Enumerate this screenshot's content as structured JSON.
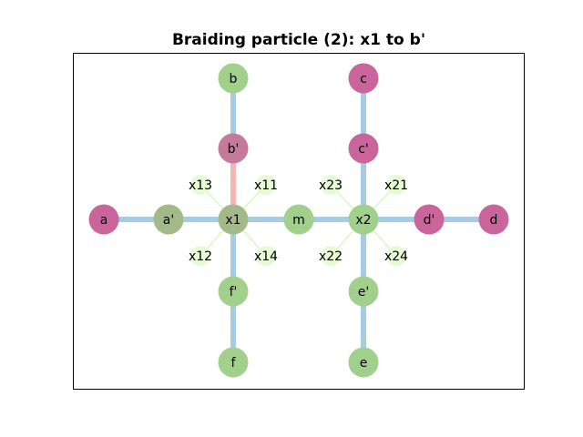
{
  "title": "Braiding particle (2): x1 to b'",
  "colors": {
    "green": "#a0d08c",
    "magenta": "#c9659b",
    "mixed": "#c47a98",
    "blend": "#a4b98a",
    "pale": "#e6fad6",
    "edge_blue": "#a7cbe3",
    "edge_pink": "#f3b8b6",
    "edge_pale": "#e4f7cc"
  },
  "nodes": [
    {
      "id": "a",
      "label": "a",
      "color": "magenta"
    },
    {
      "id": "a'",
      "label": "a'",
      "color": "blend"
    },
    {
      "id": "x1",
      "label": "x1",
      "color": "blend"
    },
    {
      "id": "m",
      "label": "m",
      "color": "green"
    },
    {
      "id": "x2",
      "label": "x2",
      "color": "green"
    },
    {
      "id": "d'",
      "label": "d'",
      "color": "magenta"
    },
    {
      "id": "d",
      "label": "d",
      "color": "magenta"
    },
    {
      "id": "b",
      "label": "b",
      "color": "green"
    },
    {
      "id": "b'",
      "label": "b'",
      "color": "mixed"
    },
    {
      "id": "f'",
      "label": "f'",
      "color": "green"
    },
    {
      "id": "f",
      "label": "f",
      "color": "green"
    },
    {
      "id": "c",
      "label": "c",
      "color": "magenta"
    },
    {
      "id": "c'",
      "label": "c'",
      "color": "magenta"
    },
    {
      "id": "e'",
      "label": "e'",
      "color": "green"
    },
    {
      "id": "e",
      "label": "e",
      "color": "green"
    }
  ],
  "small_nodes": [
    {
      "id": "x11",
      "label": "x11"
    },
    {
      "id": "x12",
      "label": "x12"
    },
    {
      "id": "x13",
      "label": "x13"
    },
    {
      "id": "x14",
      "label": "x14"
    },
    {
      "id": "x21",
      "label": "x21"
    },
    {
      "id": "x22",
      "label": "x22"
    },
    {
      "id": "x23",
      "label": "x23"
    },
    {
      "id": "x24",
      "label": "x24"
    }
  ],
  "edges": [
    {
      "from": "a",
      "to": "a'",
      "color": "edge_blue"
    },
    {
      "from": "a'",
      "to": "x1",
      "color": "edge_blue"
    },
    {
      "from": "x1",
      "to": "m",
      "color": "edge_blue"
    },
    {
      "from": "m",
      "to": "x2",
      "color": "edge_blue"
    },
    {
      "from": "x2",
      "to": "d'",
      "color": "edge_blue"
    },
    {
      "from": "d'",
      "to": "d",
      "color": "edge_blue"
    },
    {
      "from": "b",
      "to": "b'",
      "color": "edge_blue"
    },
    {
      "from": "b'",
      "to": "x1",
      "color": "edge_pink"
    },
    {
      "from": "x1",
      "to": "f'",
      "color": "edge_blue"
    },
    {
      "from": "f'",
      "to": "f",
      "color": "edge_blue"
    },
    {
      "from": "c",
      "to": "c'",
      "color": "edge_blue"
    },
    {
      "from": "c'",
      "to": "x2",
      "color": "edge_blue"
    },
    {
      "from": "x2",
      "to": "e'",
      "color": "edge_blue"
    },
    {
      "from": "e'",
      "to": "e",
      "color": "edge_blue"
    }
  ],
  "thin_edges": [
    {
      "from": "x1",
      "to": "x11"
    },
    {
      "from": "x1",
      "to": "x12"
    },
    {
      "from": "x1",
      "to": "x13"
    },
    {
      "from": "x1",
      "to": "x14"
    },
    {
      "from": "x2",
      "to": "x21"
    },
    {
      "from": "x2",
      "to": "x22"
    },
    {
      "from": "x2",
      "to": "x23"
    },
    {
      "from": "x2",
      "to": "x24"
    }
  ]
}
